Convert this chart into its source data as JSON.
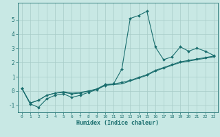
{
  "xlabel": "Humidex (Indice chaleur)",
  "background_color": "#c8e8e4",
  "grid_color": "#a8ccc8",
  "line_color": "#1a6e6e",
  "x_values": [
    0,
    1,
    2,
    3,
    4,
    5,
    6,
    7,
    8,
    9,
    10,
    11,
    12,
    13,
    14,
    15,
    16,
    17,
    18,
    19,
    20,
    21,
    22,
    23
  ],
  "line1": [
    0.2,
    -0.9,
    -1.15,
    -0.55,
    -0.3,
    -0.2,
    -0.45,
    -0.3,
    -0.1,
    0.1,
    0.4,
    0.5,
    1.55,
    5.1,
    5.3,
    5.6,
    3.1,
    2.2,
    2.4,
    3.1,
    2.8,
    3.0,
    2.8,
    2.5
  ],
  "line2": [
    0.2,
    -0.85,
    -0.65,
    -0.3,
    -0.15,
    -0.1,
    -0.2,
    -0.15,
    0.0,
    0.15,
    0.45,
    0.5,
    0.6,
    0.75,
    0.95,
    1.15,
    1.45,
    1.65,
    1.85,
    2.05,
    2.15,
    2.25,
    2.35,
    2.45
  ],
  "line3": [
    0.2,
    -0.85,
    -0.65,
    -0.3,
    -0.15,
    -0.05,
    -0.15,
    -0.1,
    0.0,
    0.1,
    0.4,
    0.45,
    0.5,
    0.7,
    0.9,
    1.1,
    1.4,
    1.6,
    1.8,
    2.0,
    2.1,
    2.2,
    2.3,
    2.4
  ],
  "ylim": [
    -1.5,
    6.2
  ],
  "xlim": [
    -0.5,
    23.5
  ],
  "yticks": [
    -1,
    0,
    1,
    2,
    3,
    4,
    5
  ],
  "xticks": [
    0,
    1,
    2,
    3,
    4,
    5,
    6,
    7,
    8,
    9,
    10,
    11,
    12,
    13,
    14,
    15,
    16,
    17,
    18,
    19,
    20,
    21,
    22,
    23
  ],
  "markersize": 2.0,
  "linewidth": 0.8
}
